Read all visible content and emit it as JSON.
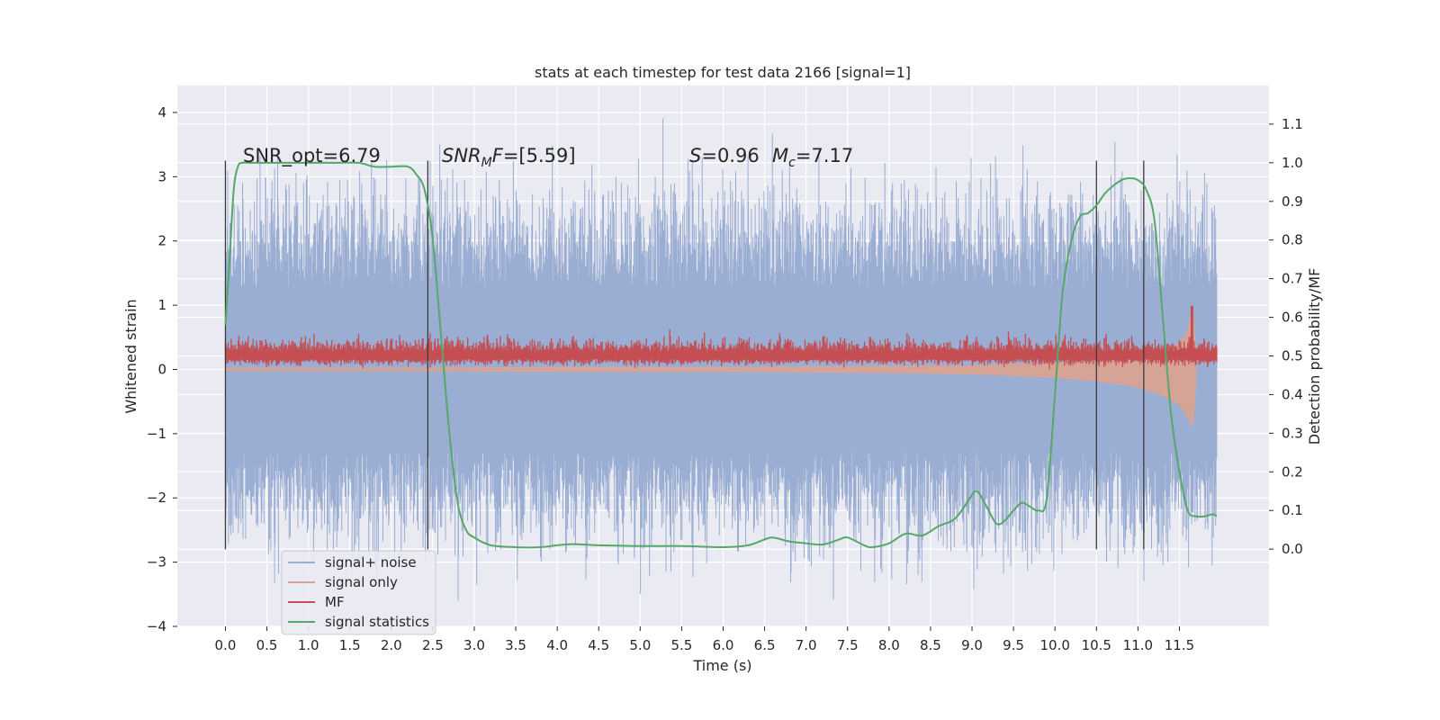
{
  "chart_data": {
    "type": "line",
    "title": "stats at each timestep for test data 2166 [signal=1]",
    "xlabel": "Time (s)",
    "ylabel": "Whitened strain",
    "ylabel_right": "Detection probability/MF",
    "xlim": [
      -0.58,
      12.58
    ],
    "ylim": [
      -4.0,
      4.42
    ],
    "ylim_right": [
      -0.2,
      1.2
    ],
    "xticks": [
      0.0,
      0.5,
      1.0,
      1.5,
      2.0,
      2.5,
      3.0,
      3.5,
      4.0,
      4.5,
      5.0,
      5.5,
      6.0,
      6.5,
      7.0,
      7.5,
      8.0,
      8.5,
      9.0,
      9.5,
      10.0,
      10.5,
      11.0,
      11.5
    ],
    "xtick_labels": [
      "0.0",
      "0.5",
      "1.0",
      "1.5",
      "2.0",
      "2.5",
      "3.0",
      "3.5",
      "4.0",
      "4.5",
      "5.0",
      "5.5",
      "6.0",
      "6.5",
      "7.0",
      "7.5",
      "8.0",
      "8.5",
      "9.0",
      "9.5",
      "10.0",
      "10.5",
      "11.0",
      "11.5"
    ],
    "yticks": [
      -4,
      -3,
      -2,
      -1,
      0,
      1,
      2,
      3,
      4
    ],
    "ytick_labels": [
      "−4",
      "−3",
      "−2",
      "−1",
      "0",
      "1",
      "2",
      "3",
      "4"
    ],
    "yticks_right": [
      0.0,
      0.1,
      0.2,
      0.3,
      0.4,
      0.5,
      0.6,
      0.7,
      0.8,
      0.9,
      1.0,
      1.1
    ],
    "ytick_labels_right": [
      "0.0",
      "0.1",
      "0.2",
      "0.3",
      "0.4",
      "0.5",
      "0.6",
      "0.7",
      "0.8",
      "0.9",
      "1.0",
      "1.1"
    ],
    "grid": true,
    "legend_position": "lower-left",
    "annotations": {
      "snr_opt": "SNR_opt=6.79",
      "snr_mf_a": "SNR",
      "snr_mf_sub": "M",
      "snr_mf_b": "F",
      "snr_mf_value": "=[5.59]",
      "s_var": "S",
      "s_value": "=0.96",
      "mc_var": "M",
      "mc_sub": "c",
      "mc_value": "=7.17"
    },
    "vertical_markers": [
      0.0,
      2.44,
      10.5,
      11.07
    ],
    "vertical_marker_range": [
      -2.8,
      3.25
    ],
    "series": [
      {
        "name": "signal+ noise",
        "color": "#9aadd2",
        "axis": "left",
        "x_range": [
          0.0,
          11.95
        ],
        "envelope_approx": {
          "upper_typical": 2.0,
          "upper_max": 4.1,
          "lower_typical": -2.0,
          "lower_min": -3.6
        }
      },
      {
        "name": "signal only",
        "color": "#dba390",
        "axis": "left",
        "x": [
          0.0,
          2.0,
          4.0,
          6.0,
          7.0,
          8.0,
          9.0,
          10.0,
          10.5,
          11.0,
          11.3,
          11.5,
          11.6,
          11.66,
          11.7
        ],
        "upper": [
          0.02,
          0.02,
          0.03,
          0.03,
          0.04,
          0.05,
          0.06,
          0.1,
          0.13,
          0.18,
          0.25,
          0.4,
          0.6,
          1.0,
          0.2
        ],
        "lower": [
          -0.02,
          -0.02,
          -0.03,
          -0.03,
          -0.04,
          -0.05,
          -0.07,
          -0.12,
          -0.18,
          -0.27,
          -0.4,
          -0.55,
          -0.75,
          -0.88,
          -0.2
        ]
      },
      {
        "name": "MF",
        "color": "#c44e52",
        "axis": "right",
        "x_range": [
          0.0,
          11.95
        ],
        "baseline": 0.5,
        "typical_min": 0.47,
        "typical_max": 0.55,
        "peak": {
          "x": 11.65,
          "y": 0.63
        }
      },
      {
        "name": "signal statistics",
        "color": "#55a868",
        "axis": "right",
        "x": [
          0.0,
          0.05,
          0.1,
          0.15,
          0.2,
          0.3,
          0.5,
          0.8,
          1.0,
          1.3,
          1.6,
          1.8,
          2.0,
          2.2,
          2.3,
          2.4,
          2.5,
          2.6,
          2.7,
          2.8,
          2.9,
          3.0,
          3.2,
          3.5,
          3.8,
          4.0,
          4.2,
          4.5,
          5.0,
          5.5,
          6.0,
          6.3,
          6.5,
          6.6,
          6.8,
          7.0,
          7.2,
          7.4,
          7.5,
          7.7,
          7.8,
          8.0,
          8.2,
          8.4,
          8.6,
          8.8,
          9.0,
          9.05,
          9.1,
          9.2,
          9.3,
          9.4,
          9.5,
          9.6,
          9.7,
          9.8,
          9.9,
          10.0,
          10.05,
          10.1,
          10.2,
          10.3,
          10.4,
          10.5,
          10.6,
          10.7,
          10.8,
          10.9,
          11.0,
          11.1,
          11.2,
          11.3,
          11.4,
          11.5,
          11.6,
          11.7,
          11.8,
          11.9,
          11.95
        ],
        "y": [
          0.58,
          0.75,
          0.93,
          0.99,
          1.0,
          1.0,
          1.0,
          1.0,
          1.0,
          1.0,
          1.0,
          0.99,
          0.99,
          0.99,
          0.97,
          0.93,
          0.8,
          0.55,
          0.3,
          0.12,
          0.05,
          0.03,
          0.01,
          0.005,
          0.005,
          0.01,
          0.013,
          0.01,
          0.008,
          0.008,
          0.005,
          0.01,
          0.025,
          0.03,
          0.02,
          0.015,
          0.012,
          0.025,
          0.03,
          0.01,
          0.005,
          0.015,
          0.04,
          0.035,
          0.06,
          0.08,
          0.14,
          0.15,
          0.14,
          0.1,
          0.065,
          0.075,
          0.1,
          0.12,
          0.11,
          0.1,
          0.13,
          0.4,
          0.55,
          0.68,
          0.8,
          0.86,
          0.87,
          0.89,
          0.92,
          0.94,
          0.955,
          0.96,
          0.955,
          0.93,
          0.85,
          0.6,
          0.35,
          0.2,
          0.1,
          0.085,
          0.085,
          0.09,
          0.085
        ]
      }
    ]
  }
}
